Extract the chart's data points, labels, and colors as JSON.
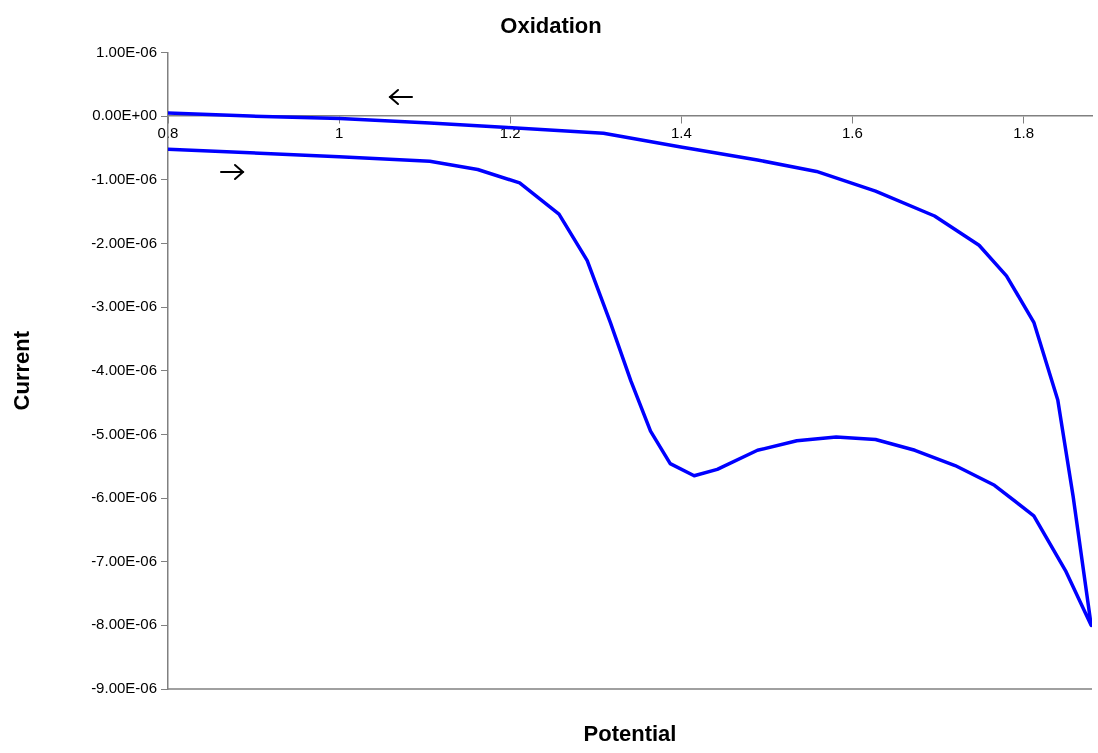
{
  "chart_data": {
    "type": "line",
    "title": "Oxidation",
    "xlabel": "Potential",
    "ylabel": "Current",
    "series": [
      {
        "color": "#0000ff",
        "x": [
          0.8,
          1.0,
          1.106,
          1.162,
          1.211,
          1.257,
          1.29,
          1.317,
          1.341,
          1.364,
          1.387,
          1.415,
          1.442,
          1.489,
          1.535,
          1.581,
          1.627,
          1.673,
          1.72,
          1.766,
          1.812,
          1.849,
          1.879,
          1.858,
          1.84,
          1.812,
          1.78,
          1.748,
          1.696,
          1.627,
          1.558,
          1.489,
          1.415,
          1.401,
          1.309,
          1.197,
          1.106,
          1.001,
          0.896,
          0.8
        ],
        "values": [
          -5.2e-07,
          -6.4e-07,
          -7.1e-07,
          -8.4e-07,
          -1.05e-06,
          -1.54e-06,
          -2.27e-06,
          -3.24e-06,
          -4.16e-06,
          -4.95e-06,
          -5.46e-06,
          -5.65e-06,
          -5.55e-06,
          -5.25e-06,
          -5.1e-06,
          -5.04e-06,
          -5.08e-06,
          -5.25e-06,
          -5.49e-06,
          -5.8e-06,
          -6.28e-06,
          -7.14e-06,
          -8e-06,
          -5.98e-06,
          -4.46e-06,
          -3.24e-06,
          -2.51e-06,
          -2.03e-06,
          -1.57e-06,
          -1.18e-06,
          -8.7e-07,
          -6.9e-07,
          -5.2e-07,
          -4.9e-07,
          -2.7e-07,
          -1.8e-07,
          -1.1e-07,
          -4e-08,
          0,
          5e-08
        ]
      }
    ],
    "xlim": [
      0.8,
      1.88
    ],
    "xticks": [
      0.8,
      1,
      1.2,
      1.4,
      1.6,
      1.8
    ],
    "ylim": [
      -9e-06,
      1e-06
    ],
    "yticks": [
      {
        "value": 1e-06,
        "label": "1.00E-06"
      },
      {
        "value": 0,
        "label": "0.00E+00"
      },
      {
        "value": -1e-06,
        "label": "-1.00E-06"
      },
      {
        "value": -2e-06,
        "label": "-2.00E-06"
      },
      {
        "value": -3e-06,
        "label": "-3.00E-06"
      },
      {
        "value": -4e-06,
        "label": "-4.00E-06"
      },
      {
        "value": -5e-06,
        "label": "-5.00E-06"
      },
      {
        "value": -6e-06,
        "label": "-6.00E-06"
      },
      {
        "value": -7e-06,
        "label": "-7.00E-06"
      },
      {
        "value": -8e-06,
        "label": "-8.00E-06"
      },
      {
        "value": -9e-06,
        "label": "-9.00E-06"
      }
    ],
    "grid": false,
    "legend": false,
    "marker": "none",
    "line_style": "solid"
  }
}
